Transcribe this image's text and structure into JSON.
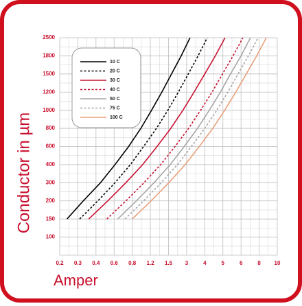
{
  "chart_data": {
    "type": "line",
    "xlabel": "Amper",
    "ylabel": "Conductor in µm",
    "xticks": [
      0.2,
      0.3,
      0.4,
      0.6,
      0.8,
      1.2,
      1.5,
      3,
      4,
      5,
      6,
      8,
      10
    ],
    "yticks": [
      100,
      150,
      200,
      300,
      400,
      600,
      800,
      1000,
      1200,
      1500,
      1800,
      2500
    ],
    "grid": true,
    "legend": "upper left",
    "series": [
      {
        "name": "10 C",
        "color": "#000000",
        "dashed": false,
        "x": [
          0.24,
          0.33,
          0.45,
          0.61,
          0.76,
          0.99,
          1.22,
          1.39,
          1.75,
          2.55,
          3.19
        ],
        "values": [
          150,
          200,
          300,
          400,
          600,
          800,
          1000,
          1200,
          1500,
          1800,
          2500
        ]
      },
      {
        "name": "20 C",
        "color": "#000000",
        "dashed": true,
        "x": [
          0.31,
          0.42,
          0.61,
          0.78,
          1.05,
          1.3,
          1.49,
          2.31,
          3.09,
          3.63,
          4.14
        ],
        "values": [
          150,
          200,
          300,
          400,
          600,
          800,
          1000,
          1200,
          1500,
          1800,
          2500
        ]
      },
      {
        "name": "30 C",
        "color": "#c8102e",
        "dashed": false,
        "x": [
          0.36,
          0.53,
          0.73,
          1.03,
          1.31,
          1.69,
          2.69,
          3.41,
          4.0,
          4.58,
          5.12
        ],
        "values": [
          150,
          200,
          300,
          400,
          600,
          800,
          1000,
          1200,
          1500,
          1800,
          2500
        ]
      },
      {
        "name": "40 C",
        "color": "#c8102e",
        "dashed": true,
        "x": [
          0.52,
          0.73,
          1.06,
          1.37,
          2.04,
          3.11,
          3.77,
          4.4,
          4.98,
          5.56,
          6.21
        ],
        "values": [
          150,
          200,
          300,
          400,
          600,
          800,
          1000,
          1200,
          1500,
          1800,
          2500
        ]
      },
      {
        "name": "50 C",
        "color": "#a6a6a6",
        "dashed": false,
        "x": [
          0.64,
          0.89,
          1.26,
          1.64,
          2.8,
          3.6,
          4.25,
          4.86,
          5.42,
          6.0,
          7.04
        ],
        "values": [
          150,
          200,
          300,
          400,
          600,
          800,
          1000,
          1200,
          1500,
          1800,
          2500
        ]
      },
      {
        "name": "75 C",
        "color": "#a6a6a6",
        "dashed": true,
        "x": [
          0.72,
          1.05,
          1.38,
          2.23,
          3.27,
          4.0,
          4.66,
          5.27,
          5.84,
          6.82,
          7.88
        ],
        "values": [
          150,
          200,
          300,
          400,
          600,
          800,
          1000,
          1200,
          1500,
          1800,
          2500
        ]
      },
      {
        "name": "100 C",
        "color": "#e8a07a",
        "dashed": false,
        "x": [
          0.8,
          1.21,
          1.53,
          2.88,
          3.7,
          4.44,
          5.1,
          5.71,
          6.58,
          7.73,
          8.79
        ],
        "values": [
          150,
          200,
          300,
          400,
          600,
          800,
          1000,
          1200,
          1500,
          1800,
          2500
        ]
      }
    ]
  }
}
